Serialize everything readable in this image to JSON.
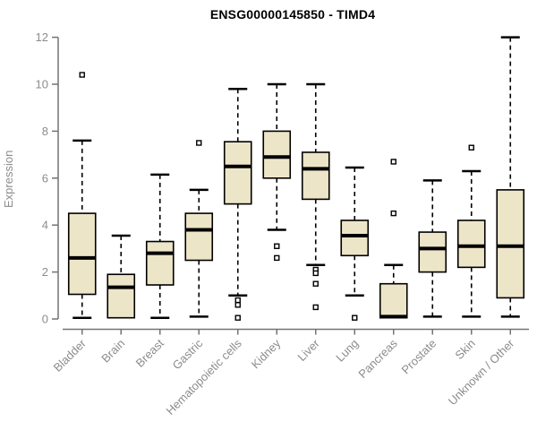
{
  "chart_data": {
    "type": "boxplot",
    "title": "ENSG00000145850 - TIMD4",
    "xlabel": "",
    "ylabel": "Expression",
    "ylim": [
      0,
      12
    ],
    "yticks": [
      0,
      2,
      4,
      6,
      8,
      10,
      12
    ],
    "grid": false,
    "legend": "none",
    "categories": [
      "Bladder",
      "Brain",
      "Breast",
      "Gastric",
      "Hematopoietic cells",
      "Kidney",
      "Liver",
      "Lung",
      "Pancreas",
      "Prostate",
      "Skin",
      "Unknown / Other"
    ],
    "series": [
      {
        "name": "Bladder",
        "whisker_low": 0.05,
        "q1": 1.05,
        "median": 2.6,
        "q3": 4.5,
        "whisker_high": 7.6,
        "outliers": [
          10.4
        ]
      },
      {
        "name": "Brain",
        "whisker_low": 0.05,
        "q1": 0.05,
        "median": 1.35,
        "q3": 1.9,
        "whisker_high": 3.55,
        "outliers": []
      },
      {
        "name": "Breast",
        "whisker_low": 0.05,
        "q1": 1.45,
        "median": 2.8,
        "q3": 3.3,
        "whisker_high": 6.15,
        "outliers": []
      },
      {
        "name": "Gastric",
        "whisker_low": 0.1,
        "q1": 2.5,
        "median": 3.8,
        "q3": 4.5,
        "whisker_high": 5.5,
        "outliers": [
          7.5
        ]
      },
      {
        "name": "Hematopoietic cells",
        "whisker_low": 1.0,
        "q1": 4.9,
        "median": 6.5,
        "q3": 7.55,
        "whisker_high": 9.8,
        "outliers": [
          0.8,
          0.6,
          0.05
        ]
      },
      {
        "name": "Kidney",
        "whisker_low": 3.8,
        "q1": 6.0,
        "median": 6.9,
        "q3": 8.0,
        "whisker_high": 10.0,
        "outliers": [
          3.1,
          2.6
        ]
      },
      {
        "name": "Liver",
        "whisker_low": 2.3,
        "q1": 5.1,
        "median": 6.4,
        "q3": 7.1,
        "whisker_high": 10.0,
        "outliers": [
          2.1,
          1.95,
          1.5,
          0.5
        ]
      },
      {
        "name": "Lung",
        "whisker_low": 1.0,
        "q1": 2.7,
        "median": 3.55,
        "q3": 4.2,
        "whisker_high": 6.45,
        "outliers": [
          0.05
        ]
      },
      {
        "name": "Pancreas",
        "whisker_low": 0.05,
        "q1": 0.05,
        "median": 0.1,
        "q3": 1.5,
        "whisker_high": 2.3,
        "outliers": [
          6.7,
          4.5
        ]
      },
      {
        "name": "Prostate",
        "whisker_low": 0.1,
        "q1": 2.0,
        "median": 3.0,
        "q3": 3.7,
        "whisker_high": 5.9,
        "outliers": []
      },
      {
        "name": "Skin",
        "whisker_low": 0.1,
        "q1": 2.2,
        "median": 3.1,
        "q3": 4.2,
        "whisker_high": 6.3,
        "outliers": [
          7.3
        ]
      },
      {
        "name": "Unknown / Other",
        "whisker_low": 0.1,
        "q1": 0.9,
        "median": 3.1,
        "q3": 5.5,
        "whisker_high": 12.0,
        "outliers": []
      }
    ],
    "colors": {
      "box_fill": "#EDE5C7",
      "box_border": "#000000",
      "median": "#000000",
      "whisker": "#000000",
      "outlier_fill": "#ffffff",
      "axis_line": "#737373",
      "tick_text": "#8c8c8c",
      "title_text": "#000000",
      "background": "#ffffff"
    }
  }
}
